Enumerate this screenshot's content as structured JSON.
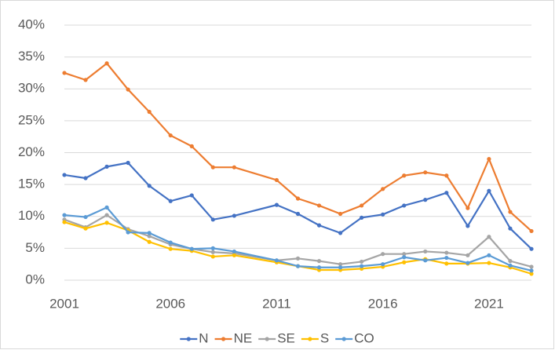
{
  "chart_data": {
    "type": "line",
    "x": [
      2001,
      2002,
      2003,
      2004,
      2005,
      2006,
      2007,
      2008,
      2009,
      2011,
      2012,
      2013,
      2014,
      2015,
      2016,
      2017,
      2018,
      2019,
      2020,
      2021,
      2022,
      2023
    ],
    "series": [
      {
        "name": "N",
        "color": "#4472c4",
        "values": [
          16.5,
          16.0,
          17.8,
          18.4,
          14.8,
          12.4,
          13.3,
          9.5,
          10.1,
          11.8,
          10.4,
          8.6,
          7.4,
          9.8,
          10.3,
          11.7,
          12.6,
          13.7,
          8.5,
          14.0,
          8.1,
          4.9
        ]
      },
      {
        "name": "NE",
        "color": "#ed7d31",
        "values": [
          32.5,
          31.4,
          34.0,
          29.9,
          26.4,
          22.7,
          21.0,
          17.7,
          17.7,
          15.7,
          12.8,
          11.7,
          10.4,
          11.7,
          14.3,
          16.4,
          16.9,
          16.4,
          11.3,
          19.0,
          10.7,
          7.7
        ]
      },
      {
        "name": "SE",
        "color": "#a5a5a5",
        "values": [
          9.5,
          8.3,
          10.2,
          8.0,
          6.9,
          5.6,
          4.9,
          4.4,
          4.2,
          3.1,
          3.4,
          3.0,
          2.5,
          2.9,
          4.1,
          4.1,
          4.5,
          4.3,
          3.9,
          6.8,
          3.0,
          2.1
        ]
      },
      {
        "name": "S",
        "color": "#ffc000",
        "values": [
          9.1,
          8.1,
          9.0,
          7.8,
          6.0,
          4.9,
          4.6,
          3.7,
          3.9,
          2.8,
          2.2,
          1.6,
          1.6,
          1.8,
          2.1,
          2.8,
          3.3,
          2.6,
          2.6,
          2.7,
          2.0,
          1.0
        ]
      },
      {
        "name": "CO",
        "color": "#5b9bd5",
        "values": [
          10.2,
          9.9,
          11.4,
          7.5,
          7.4,
          5.9,
          4.9,
          5.0,
          4.5,
          3.1,
          2.2,
          2.0,
          2.0,
          2.2,
          2.5,
          3.6,
          3.1,
          3.5,
          2.7,
          3.9,
          2.3,
          1.5
        ]
      }
    ],
    "xlim": [
      2001,
      2023
    ],
    "xticks": [
      2001,
      2006,
      2011,
      2016,
      2021
    ],
    "ylim": [
      0,
      40
    ],
    "yticks": [
      {
        "value": 0,
        "label": "0%"
      },
      {
        "value": 5,
        "label": "5%"
      },
      {
        "value": 10,
        "label": "10%"
      },
      {
        "value": 15,
        "label": "15%"
      },
      {
        "value": 20,
        "label": "20%"
      },
      {
        "value": 25,
        "label": "25%"
      },
      {
        "value": 30,
        "label": "30%"
      },
      {
        "value": 35,
        "label": "35%"
      },
      {
        "value": 40,
        "label": "40%"
      }
    ],
    "grid": true,
    "legend": "bottom"
  }
}
